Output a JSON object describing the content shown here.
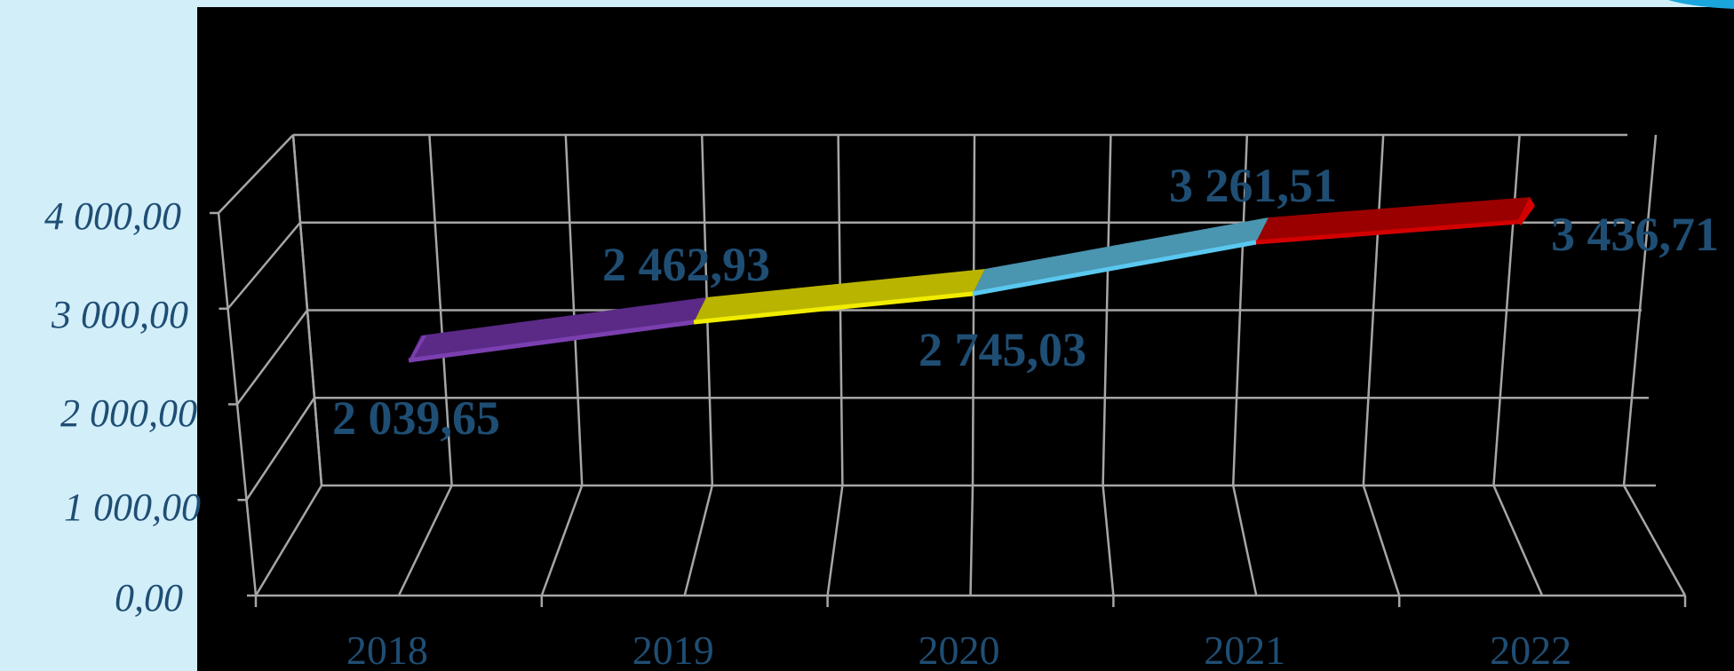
{
  "chart_data": {
    "type": "line",
    "style": "3d-ribbon",
    "categories": [
      "2018",
      "2019",
      "2020",
      "2021",
      "2022"
    ],
    "values": [
      2039.65,
      2462.93,
      2745.03,
      3261.51,
      3436.71
    ],
    "data_labels": [
      "2 039,65",
      "2 462,93",
      "2 745,03",
      "3 261,51",
      "3 436,71"
    ],
    "y_ticks": [
      0,
      1000,
      2000,
      3000,
      4000
    ],
    "y_tick_labels": [
      "0,00",
      "1 000,00",
      "2 000,00",
      "3 000,00",
      "4 000,00"
    ],
    "ylim": [
      0,
      4000
    ],
    "title": "",
    "xlabel": "",
    "ylabel": "",
    "grid": true,
    "legend": "none",
    "segment_colors": [
      {
        "top": "#5a2a86",
        "edge": "#7b3fb0"
      },
      {
        "top": "#b9b400",
        "edge": "#f2ec00"
      },
      {
        "top": "#4a95b0",
        "edge": "#5ac8f0"
      },
      {
        "top": "#9b0000",
        "edge": "#d40000"
      }
    ],
    "colors": {
      "background": "#d2eef9",
      "plot_background": "#000000",
      "gridlines": "#a6a6a6",
      "text": "#1f4e74"
    }
  }
}
